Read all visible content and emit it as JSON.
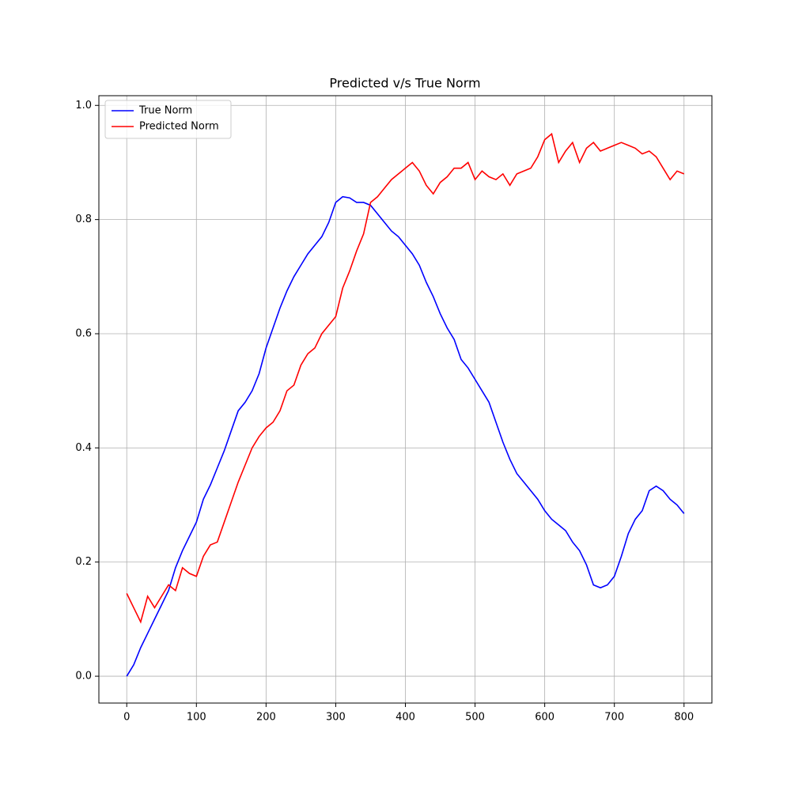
{
  "chart_data": {
    "type": "line",
    "title": "Predicted v/s True Norm",
    "x": [
      0,
      10,
      20,
      30,
      40,
      50,
      60,
      70,
      80,
      90,
      100,
      110,
      120,
      130,
      140,
      150,
      160,
      170,
      180,
      190,
      200,
      210,
      220,
      230,
      240,
      250,
      260,
      270,
      280,
      290,
      300,
      310,
      320,
      330,
      340,
      350,
      360,
      370,
      380,
      390,
      400,
      410,
      420,
      430,
      440,
      450,
      460,
      470,
      480,
      490,
      500,
      510,
      520,
      530,
      540,
      550,
      560,
      570,
      580,
      590,
      600,
      610,
      620,
      630,
      640,
      650,
      660,
      670,
      680,
      690,
      700,
      710,
      720,
      730,
      740,
      750,
      760,
      770,
      780,
      790,
      800
    ],
    "series": [
      {
        "name": "True Norm",
        "color": "#0000ff",
        "values": [
          0.0,
          0.02,
          0.05,
          0.075,
          0.1,
          0.125,
          0.15,
          0.19,
          0.22,
          0.245,
          0.27,
          0.31,
          0.335,
          0.365,
          0.395,
          0.43,
          0.465,
          0.48,
          0.5,
          0.53,
          0.575,
          0.61,
          0.645,
          0.675,
          0.7,
          0.72,
          0.74,
          0.755,
          0.77,
          0.795,
          0.83,
          0.84,
          0.838,
          0.83,
          0.83,
          0.825,
          0.81,
          0.795,
          0.78,
          0.77,
          0.755,
          0.74,
          0.72,
          0.69,
          0.665,
          0.635,
          0.61,
          0.59,
          0.555,
          0.54,
          0.52,
          0.5,
          0.48,
          0.445,
          0.41,
          0.38,
          0.355,
          0.34,
          0.325,
          0.31,
          0.29,
          0.275,
          0.265,
          0.255,
          0.235,
          0.22,
          0.195,
          0.16,
          0.155,
          0.16,
          0.175,
          0.21,
          0.25,
          0.275,
          0.29,
          0.325,
          0.333,
          0.325,
          0.31,
          0.3,
          0.285
        ]
      },
      {
        "name": "Predicted Norm",
        "color": "#ff0000",
        "values": [
          0.145,
          0.12,
          0.095,
          0.14,
          0.12,
          0.14,
          0.16,
          0.15,
          0.19,
          0.18,
          0.175,
          0.21,
          0.23,
          0.235,
          0.27,
          0.305,
          0.34,
          0.37,
          0.4,
          0.42,
          0.435,
          0.445,
          0.465,
          0.5,
          0.51,
          0.545,
          0.565,
          0.575,
          0.6,
          0.615,
          0.63,
          0.68,
          0.71,
          0.745,
          0.775,
          0.83,
          0.84,
          0.855,
          0.87,
          0.88,
          0.89,
          0.9,
          0.885,
          0.86,
          0.845,
          0.865,
          0.875,
          0.89,
          0.89,
          0.9,
          0.87,
          0.885,
          0.875,
          0.87,
          0.88,
          0.86,
          0.88,
          0.885,
          0.89,
          0.91,
          0.94,
          0.95,
          0.9,
          0.92,
          0.935,
          0.9,
          0.925,
          0.935,
          0.92,
          0.925,
          0.93,
          0.935,
          0.93,
          0.925,
          0.915,
          0.92,
          0.91,
          0.89,
          0.87,
          0.885,
          0.88
        ]
      }
    ],
    "xlim": [
      -40,
      840
    ],
    "ylim": [
      -0.047,
      1.017
    ],
    "xticks": [
      0,
      100,
      200,
      300,
      400,
      500,
      600,
      700,
      800
    ],
    "yticks": [
      {
        "value": 0,
        "label": "0.0"
      },
      0.2,
      0.4,
      0.6,
      0.8,
      {
        "value": 1,
        "label": "1.0"
      }
    ],
    "grid": true,
    "legend": "upper left"
  }
}
